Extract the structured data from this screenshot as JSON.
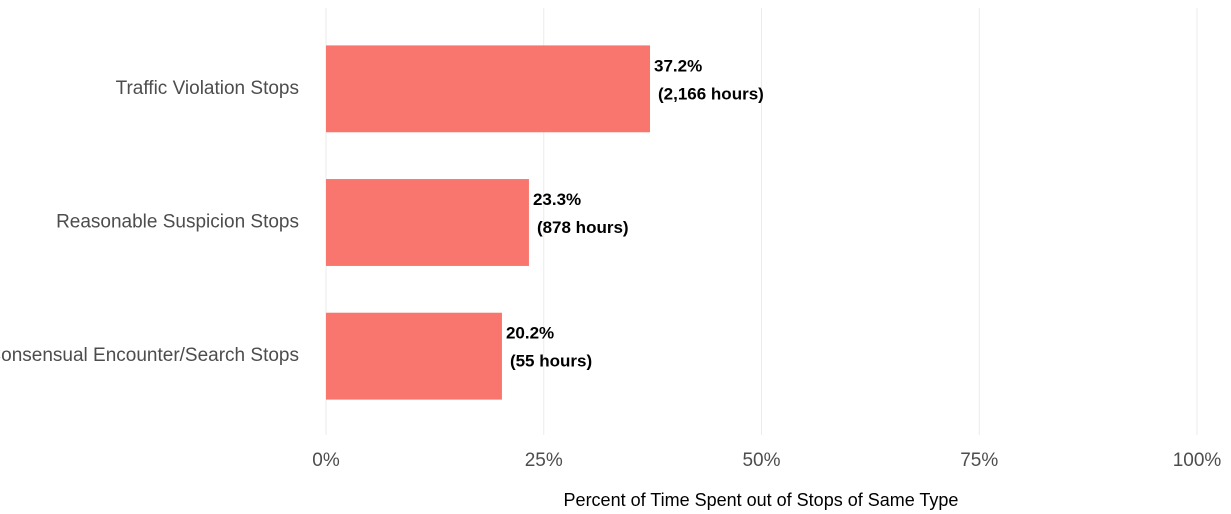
{
  "chart_data": {
    "type": "barh",
    "categories": [
      "Traffic Violation Stops",
      "Reasonable Suspicion Stops",
      "Consensual Encounter/Search Stops"
    ],
    "values": [
      37.2,
      23.3,
      20.2
    ],
    "value_labels": [
      "37.2%",
      "23.3%",
      "20.2%"
    ],
    "hours_labels": [
      "(2,166 hours)",
      "(878 hours)",
      "(55 hours)"
    ],
    "color": "#f8766d",
    "xlim": [
      0,
      100
    ],
    "xticks": [
      {
        "value": 0,
        "label": "0%"
      },
      {
        "value": 25,
        "label": "25%"
      },
      {
        "value": 50,
        "label": "50%"
      },
      {
        "value": 75,
        "label": "75%"
      },
      {
        "value": 100,
        "label": "100%"
      }
    ],
    "xlabel": "Percent of Time Spent out of Stops of Same Type",
    "grid": true
  }
}
